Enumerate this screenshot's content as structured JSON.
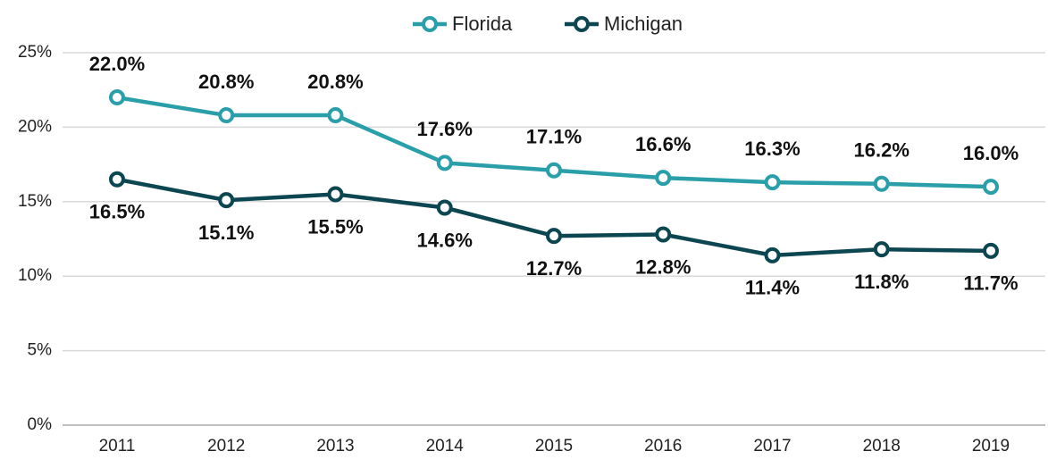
{
  "chart_data": {
    "type": "line",
    "categories": [
      "2011",
      "2012",
      "2013",
      "2014",
      "2015",
      "2016",
      "2017",
      "2018",
      "2019"
    ],
    "series": [
      {
        "name": "Florida",
        "color": "#2a9faa",
        "values": [
          22.0,
          20.8,
          20.8,
          17.6,
          17.1,
          16.6,
          16.3,
          16.2,
          16.0
        ],
        "value_labels": [
          "22.0%",
          "20.8%",
          "20.8%",
          "17.6%",
          "17.1%",
          "16.6%",
          "16.3%",
          "16.2%",
          "16.0%"
        ]
      },
      {
        "name": "Michigan",
        "color": "#0c4650",
        "values": [
          16.5,
          15.1,
          15.5,
          14.6,
          12.7,
          12.8,
          11.4,
          11.8,
          11.7
        ],
        "value_labels": [
          "16.5%",
          "15.1%",
          "15.5%",
          "14.6%",
          "12.7%",
          "12.8%",
          "11.4%",
          "11.8%",
          "11.7%"
        ]
      }
    ],
    "ylim": [
      0,
      25
    ],
    "yticks": [
      {
        "value": 0,
        "label": "0%"
      },
      {
        "value": 5,
        "label": "5%"
      },
      {
        "value": 10,
        "label": "10%"
      },
      {
        "value": 15,
        "label": "15%"
      },
      {
        "value": 20,
        "label": "20%"
      },
      {
        "value": 25,
        "label": "25%"
      }
    ],
    "grid": true,
    "legend": "top"
  }
}
